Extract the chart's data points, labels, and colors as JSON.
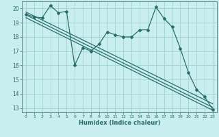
{
  "xlabel": "Humidex (Indice chaleur)",
  "bg_color": "#c8eef0",
  "grid_color": "#a0d4cc",
  "line_color": "#2a6e6a",
  "spine_color": "#5a8a85",
  "xlim": [
    -0.5,
    23.5
  ],
  "ylim": [
    12.7,
    20.5
  ],
  "yticks": [
    13,
    14,
    15,
    16,
    17,
    18,
    19,
    20
  ],
  "xticks": [
    0,
    1,
    2,
    3,
    4,
    5,
    6,
    7,
    8,
    9,
    10,
    11,
    12,
    13,
    14,
    15,
    16,
    17,
    18,
    19,
    20,
    21,
    22,
    23
  ],
  "series1_x": [
    0,
    1,
    2,
    3,
    4,
    5,
    6,
    7,
    8,
    9,
    10,
    11,
    12,
    13,
    14,
    15,
    16,
    17,
    18,
    19,
    20,
    21,
    22,
    23
  ],
  "series1_y": [
    19.6,
    19.4,
    19.35,
    20.2,
    19.7,
    19.8,
    16.0,
    17.25,
    17.0,
    17.5,
    18.35,
    18.15,
    18.0,
    18.0,
    18.5,
    18.5,
    20.1,
    19.3,
    18.7,
    17.2,
    15.5,
    14.3,
    13.8,
    12.9
  ],
  "line2_x": [
    0,
    23
  ],
  "line2_y": [
    19.75,
    13.3
  ],
  "line3_x": [
    0,
    23
  ],
  "line3_y": [
    19.55,
    13.05
  ],
  "line4_x": [
    0,
    23
  ],
  "line4_y": [
    19.35,
    12.85
  ]
}
